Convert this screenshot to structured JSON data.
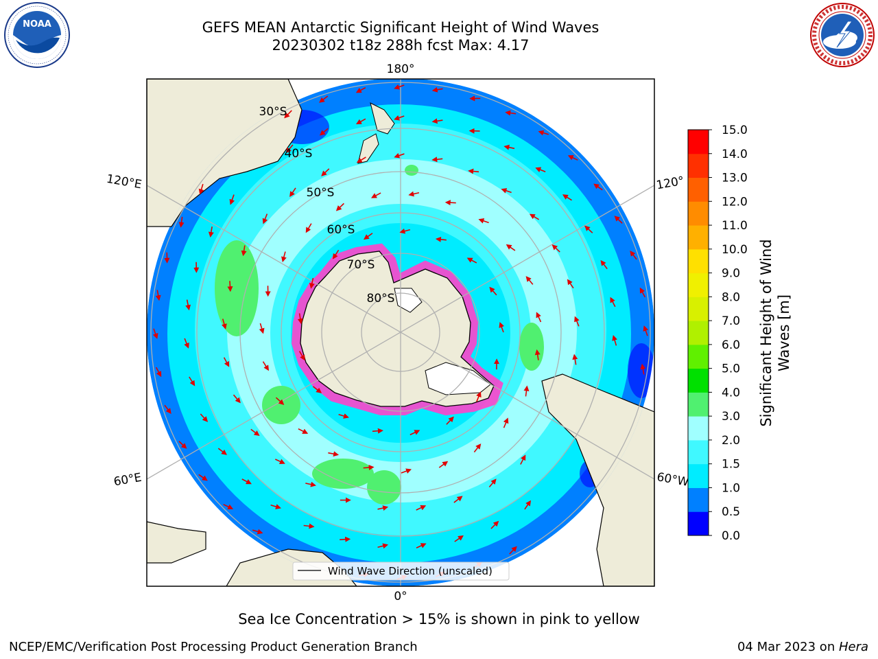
{
  "header": {
    "title_line1": "GEFS MEAN Antarctic Significant Height of Wind Waves",
    "title_line2": "20230302 t18z 288h fcst   Max: 4.17"
  },
  "logos": {
    "left": {
      "name": "noaa-logo",
      "text": "NOAA",
      "ring_text": "NATIONAL OCEANIC AND ATMOSPHERIC ADMINISTRATION · U.S. DEPARTMENT OF COMMERCE"
    },
    "right": {
      "name": "nws-logo",
      "ring_text": "NATIONAL WEATHER SERVICE"
    }
  },
  "map": {
    "projection": "south-polar-stereographic",
    "longitude_labels": {
      "top": "180°",
      "bottom": "0°",
      "upper_left": "120°E",
      "lower_left": "60°E",
      "upper_right": "120°",
      "lower_right": "60°W"
    },
    "latitude_labels": [
      "30°S",
      "40°S",
      "50°S",
      "60°S",
      "70°S",
      "80°S"
    ],
    "legend_label": "Wind Wave Direction (unscaled)",
    "colors": {
      "land": "#eeecd9",
      "ice_edge": "#ff44cc",
      "arrow": "#e00000",
      "grid": "#b0b0b0"
    }
  },
  "colorbar": {
    "label_line1": "Significant Height of Wind",
    "label_line2": "Waves [m]",
    "ticks": [
      "0.0",
      "0.5",
      "1.0",
      "1.5",
      "2.0",
      "3.0",
      "4.0",
      "5.0",
      "6.0",
      "7.0",
      "8.0",
      "9.0",
      "10.0",
      "11.0",
      "12.0",
      "13.0",
      "14.0",
      "15.0"
    ],
    "colors": [
      "#0000ff",
      "#0080ff",
      "#00ecff",
      "#40f8ff",
      "#a0ffff",
      "#50f070",
      "#00e000",
      "#60f000",
      "#b0f000",
      "#d8f000",
      "#f0f000",
      "#ffe000",
      "#ffb000",
      "#ff8c00",
      "#ff6000",
      "#ff3000",
      "#ff0000"
    ]
  },
  "notes": {
    "sea_ice": "Sea Ice Concentration > 15% is shown in pink to yellow"
  },
  "footer": {
    "left": "NCEP/EMC/Verification Post Processing Product Generation Branch",
    "date_prefix": "04 Mar 2023 on ",
    "date_host": "Hera"
  }
}
